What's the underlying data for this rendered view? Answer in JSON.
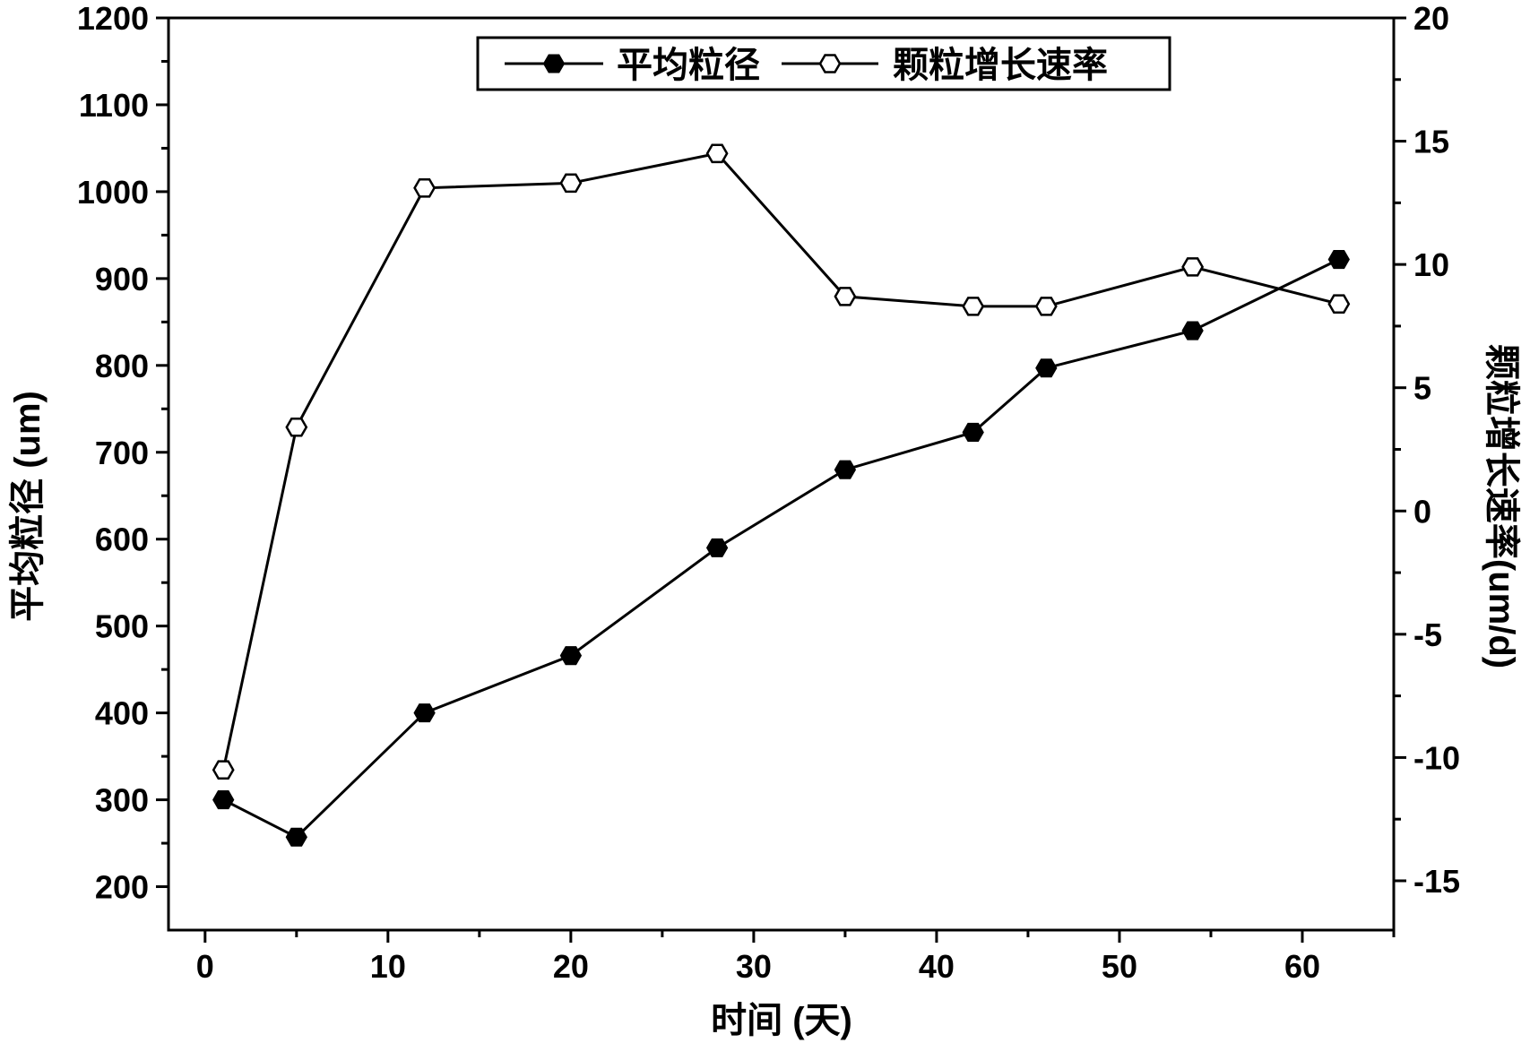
{
  "chart_data": {
    "type": "line",
    "x": [
      1,
      5,
      12,
      20,
      28,
      35,
      42,
      46,
      54,
      62
    ],
    "xlabel": "时间 (天)",
    "xlim": [
      -2,
      65
    ],
    "xticks": [
      0,
      10,
      20,
      30,
      40,
      50,
      60
    ],
    "y_left": {
      "label": "平均粒径 (um)",
      "lim": [
        150,
        1200
      ],
      "ticks": [
        200,
        300,
        400,
        500,
        600,
        700,
        800,
        900,
        1000,
        1100,
        1200
      ]
    },
    "y_right": {
      "label": "颗粒增长速率(um/d)",
      "lim": [
        -17,
        20
      ],
      "ticks": [
        -15,
        -10,
        -5,
        0,
        5,
        10,
        15,
        20
      ]
    },
    "series": [
      {
        "name": "平均粒径",
        "axis": "left",
        "marker": "filled-hexagon",
        "values": [
          300,
          257,
          400,
          466,
          590,
          680,
          723,
          797,
          840,
          922
        ]
      },
      {
        "name": "颗粒增长速率",
        "axis": "right",
        "marker": "open-hexagon",
        "values": [
          -10.5,
          3.4,
          13.1,
          13.3,
          14.5,
          8.7,
          8.3,
          8.3,
          9.9,
          8.4
        ]
      }
    ],
    "legend_position": "top-center",
    "grid": false
  }
}
